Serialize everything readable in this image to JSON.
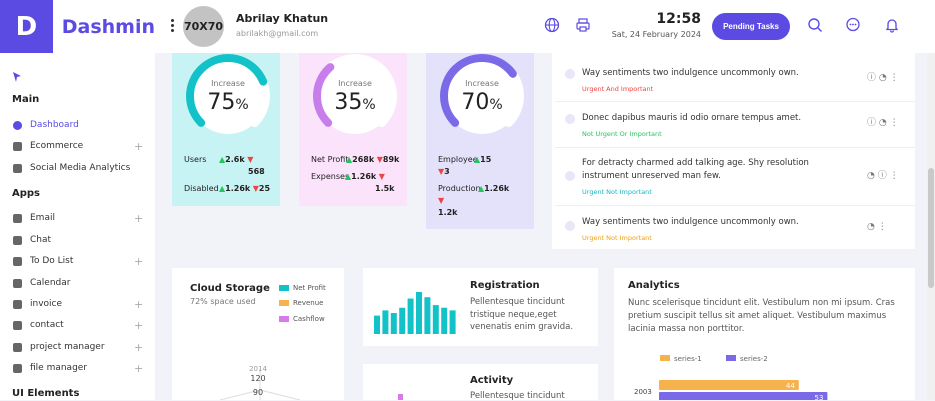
{
  "brand": {
    "letter": "D",
    "name": "Dashmin"
  },
  "user": {
    "avatar_text": "70X70",
    "name": "Abrilay Khatun",
    "email": "abrilakh@gmail.com"
  },
  "clock": {
    "time": "12:58",
    "date": "Sat, 24 February 2024"
  },
  "header": {
    "pending_label": "Pending Tasks"
  },
  "sidebar": {
    "main_title": "Main",
    "main_items": [
      {
        "label": "Dashboard"
      },
      {
        "label": "Ecommerce"
      },
      {
        "label": "Social Media Analytics"
      }
    ],
    "apps_title": "Apps",
    "app_items": [
      {
        "label": "Email"
      },
      {
        "label": "Chat"
      },
      {
        "label": "To Do List"
      },
      {
        "label": "Calendar"
      },
      {
        "label": "invoice"
      },
      {
        "label": "contact"
      },
      {
        "label": "project manager"
      },
      {
        "label": "file manager"
      }
    ],
    "ui_title": "UI Elements"
  },
  "stats": [
    {
      "label": "Increase",
      "value": 75,
      "unit": "%",
      "color": "#13c2c9",
      "bg": "#c8f3f4",
      "l1": "Users",
      "v1": "2.6k",
      "v1b": "568",
      "l2": "Disabled",
      "v2": "1.26k",
      "v2b": "25"
    },
    {
      "label": "Increase",
      "value": 35,
      "unit": "%",
      "color": "#c77dea",
      "bg": "#fbe3fb",
      "l1": "Net Profit",
      "v1": "268k",
      "v1b": "89k",
      "l2": "Expenses",
      "v2": "1.26k",
      "v2b": "1.5k"
    },
    {
      "label": "Increase",
      "value": 70,
      "unit": "%",
      "color": "#7b6ae8",
      "bg": "#e4e1fb",
      "l1": "Employee",
      "v1": "15",
      "v1b": "3",
      "l2": "Production",
      "v2": "1.26k",
      "v2b": "1.2k"
    }
  ],
  "tasks": [
    {
      "text": "Way sentiments two indulgence uncommonly own.",
      "tag": "Urgent And Important",
      "tag_color": "#ef4444"
    },
    {
      "text": "Donec dapibus mauris id odio ornare tempus amet.",
      "tag": "Not Urgent Or Important",
      "tag_color": "#22c55e"
    },
    {
      "text": "For detracty charmed add talking age. Shy resolution instrument unreserved man few.",
      "tag": "Urgent Not Important",
      "tag_color": "#14b8c4"
    },
    {
      "text": "Way sentiments two indulgence uncommonly own.",
      "tag": "Urgent Not Important",
      "tag_color": "#f59e0b"
    }
  ],
  "cloud": {
    "title": "Cloud Storage",
    "subtitle": "72% space used",
    "legend": [
      {
        "name": "Net Profit",
        "color": "#13c2c9"
      },
      {
        "name": "Revenue",
        "color": "#f6b24c"
      },
      {
        "name": "Cashflow",
        "color": "#d87ae8"
      }
    ],
    "year": "2014",
    "tick_a": "120",
    "tick_b": "90"
  },
  "registration": {
    "title": "Registration",
    "text": "Pellentesque tincidunt tristique neque,eget venenatis enim gravida."
  },
  "activity": {
    "title": "Activity",
    "text": "Pellentesque tincidunt"
  },
  "analytics": {
    "title": "Analytics",
    "text": "Nunc scelerisque tincidunt elit. Vestibulum non mi ipsum. Cras pretium suscipit tellus sit amet aliquet. Vestibulum maximus lacinia massa non porttitor."
  },
  "chart_data": [
    {
      "type": "bar",
      "categories": [
        "",
        "",
        "",
        "",
        "",
        "",
        "",
        "",
        "",
        ""
      ],
      "values": [
        14,
        18,
        16,
        20,
        27,
        32,
        28,
        22,
        20,
        18
      ],
      "title": "",
      "color": "#13c2c9"
    },
    {
      "type": "bar",
      "orientation": "horizontal",
      "categories": [
        "2003"
      ],
      "series": [
        {
          "name": "series-1",
          "values": [
            44
          ],
          "color": "#f6b24c"
        },
        {
          "name": "series-2",
          "values": [
            53
          ],
          "color": "#7b6ae8"
        }
      ],
      "xlim": [
        0,
        60
      ]
    }
  ]
}
